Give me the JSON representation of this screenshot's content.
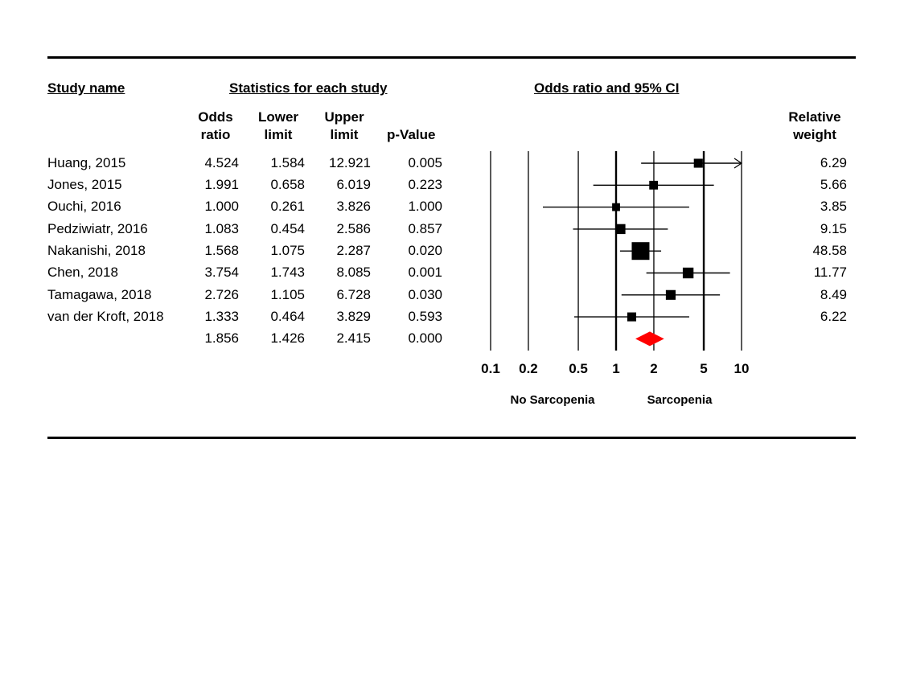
{
  "headers": {
    "study_name": "Study name",
    "statistics": "Statistics for each study",
    "or_ci": "Odds ratio and 95% CI",
    "odds_ratio": [
      "Odds",
      "ratio"
    ],
    "lower_limit": [
      "Lower",
      "limit"
    ],
    "upper_limit": [
      "Upper",
      "limit"
    ],
    "p_value": "p-Value",
    "relative_weight": [
      "Relative",
      "weight"
    ]
  },
  "rows": [
    {
      "study": "Huang, 2015",
      "or": "4.524",
      "lower": "1.584",
      "upper": "12.921",
      "p": "0.005",
      "weight": "6.29"
    },
    {
      "study": "Jones, 2015",
      "or": "1.991",
      "lower": "0.658",
      "upper": "6.019",
      "p": "0.223",
      "weight": "5.66"
    },
    {
      "study": "Ouchi, 2016",
      "or": "1.000",
      "lower": "0.261",
      "upper": "3.826",
      "p": "1.000",
      "weight": "3.85"
    },
    {
      "study": "Pedziwiatr, 2016",
      "or": "1.083",
      "lower": "0.454",
      "upper": "2.586",
      "p": "0.857",
      "weight": "9.15"
    },
    {
      "study": "Nakanishi, 2018",
      "or": "1.568",
      "lower": "1.075",
      "upper": "2.287",
      "p": "0.020",
      "weight": "48.58"
    },
    {
      "study": "Chen, 2018",
      "or": "3.754",
      "lower": "1.743",
      "upper": "8.085",
      "p": "0.001",
      "weight": "11.77"
    },
    {
      "study": "Tamagawa, 2018",
      "or": "2.726",
      "lower": "1.105",
      "upper": "6.728",
      "p": "0.030",
      "weight": "8.49"
    },
    {
      "study": "van der Kroft, 2018",
      "or": "1.333",
      "lower": "0.464",
      "upper": "3.829",
      "p": "0.593",
      "weight": "6.22"
    }
  ],
  "summary": {
    "or": "1.856",
    "lower": "1.426",
    "upper": "2.415",
    "p": "0.000"
  },
  "chart_data": {
    "type": "forest",
    "x_scale": "log",
    "xlim": [
      0.1,
      10
    ],
    "x_ticks": [
      0.1,
      0.2,
      0.5,
      1,
      2,
      5,
      10
    ],
    "x_tick_labels": [
      "0.1",
      "0.2",
      "0.5",
      "1",
      "2",
      "5",
      "10"
    ],
    "favours_left": "No Sarcopenia",
    "favours_right": "Sarcopenia",
    "studies": [
      {
        "or": 4.524,
        "lower": 1.584,
        "upper": 12.921,
        "weight": 6.29
      },
      {
        "or": 1.991,
        "lower": 0.658,
        "upper": 6.019,
        "weight": 5.66
      },
      {
        "or": 1.0,
        "lower": 0.261,
        "upper": 3.826,
        "weight": 3.85
      },
      {
        "or": 1.083,
        "lower": 0.454,
        "upper": 2.586,
        "weight": 9.15
      },
      {
        "or": 1.568,
        "lower": 1.075,
        "upper": 2.287,
        "weight": 48.58
      },
      {
        "or": 3.754,
        "lower": 1.743,
        "upper": 8.085,
        "weight": 11.77
      },
      {
        "or": 2.726,
        "lower": 1.105,
        "upper": 6.728,
        "weight": 8.49
      },
      {
        "or": 1.333,
        "lower": 0.464,
        "upper": 3.829,
        "weight": 6.22
      }
    ],
    "summary": {
      "or": 1.856,
      "lower": 1.426,
      "upper": 2.415
    },
    "summary_color": "#ff0000",
    "marker_color": "#000000"
  }
}
